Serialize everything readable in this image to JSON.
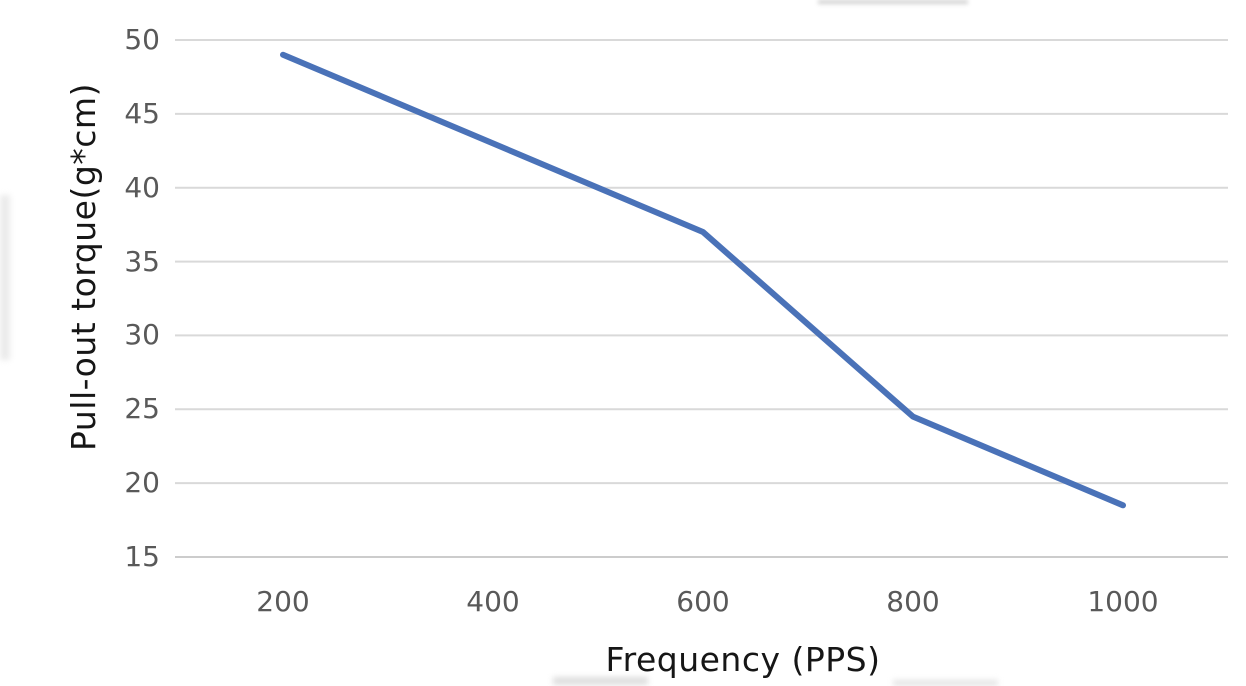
{
  "chart_data": {
    "type": "line",
    "title": "",
    "xlabel": "Frequency (PPS)",
    "ylabel": "Pull-out torque(g*cm)",
    "x": [
      200,
      400,
      600,
      800,
      1000
    ],
    "xtick_labels": [
      "200",
      "400",
      "600",
      "800",
      "1000"
    ],
    "series": [
      {
        "name": "Pull-out torque",
        "values": [
          49,
          43,
          37,
          24.5,
          18.5
        ]
      }
    ],
    "yticks": [
      50,
      45,
      40,
      35,
      30,
      25,
      20,
      15
    ],
    "ylim": [
      15,
      50
    ],
    "xlim": [
      200,
      1000
    ],
    "grid": "horizontal",
    "legend_position": "none",
    "markers": false,
    "colors": {
      "line": "#4a72b8",
      "gridline": "#d9d9d9",
      "bottom_gridline": "#cccccc",
      "tick_label": "#595959",
      "axis_title": "#161616",
      "background": "#ffffff"
    }
  }
}
